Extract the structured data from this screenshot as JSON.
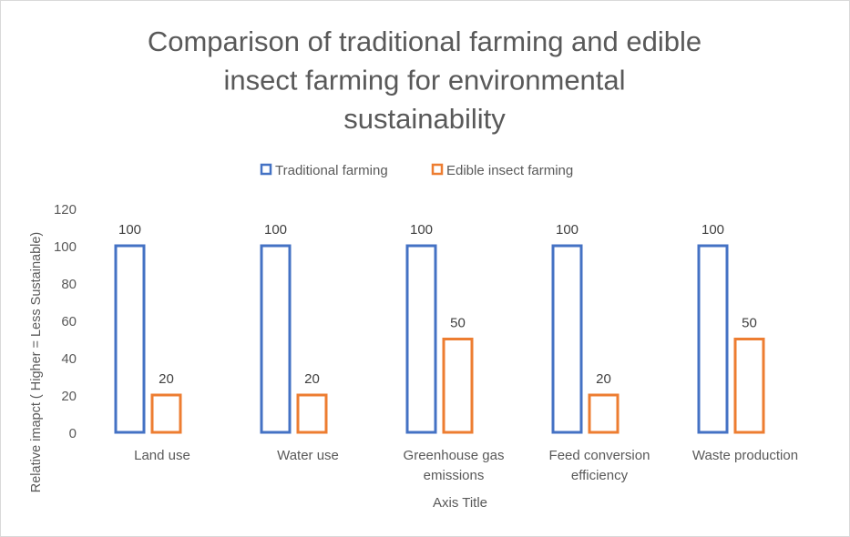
{
  "chart_data": {
    "type": "bar",
    "title": "Comparison of traditional farming and edible insect farming for environmental sustainability",
    "title_lines": [
      "Comparison of traditional farming and edible",
      "insect farming for environmental",
      "sustainability"
    ],
    "xlabel": "Axis Title",
    "ylabel": "Relative imapct ( Higher = Less Sustainable)",
    "ylim": [
      0,
      120
    ],
    "yticks": [
      "0",
      "20",
      "40",
      "60",
      "80",
      "100",
      "120"
    ],
    "grid": false,
    "legend_position": "top",
    "bar_style": "outline",
    "categories": [
      [
        "Land use"
      ],
      [
        "Water use"
      ],
      [
        "Greenhouse gas",
        "emissions"
      ],
      [
        "Feed conversion",
        "efficiency"
      ],
      [
        "Waste production"
      ]
    ],
    "series": [
      {
        "name": "Traditional farming",
        "color": "#4472c4",
        "values": [
          100,
          100,
          100,
          100,
          100
        ]
      },
      {
        "name": "Edible insect farming",
        "color": "#ed7d31",
        "values": [
          20,
          20,
          50,
          20,
          50
        ]
      }
    ]
  }
}
